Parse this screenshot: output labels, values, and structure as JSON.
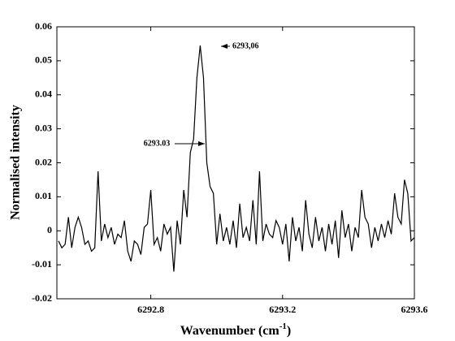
{
  "chart_data": {
    "type": "line",
    "color": "#000000",
    "xlabel": {
      "text": "Wavenumber (cm",
      "superscript": "-1",
      "suffix": ")"
    },
    "ylabel": "Normalised intensity",
    "xlim": [
      6292.515,
      6293.6
    ],
    "xticks": [
      6292.8,
      6293.2,
      6293.6
    ],
    "ylim": [
      -0.02,
      0.06
    ],
    "yticks": [
      -0.02,
      -0.01,
      0,
      0.01,
      0.02,
      0.03,
      0.04,
      0.05,
      0.06
    ],
    "annotations": [
      "6293.03",
      "6293,06"
    ],
    "x": [
      6292.52,
      6292.53,
      6292.54,
      6292.55,
      6292.56,
      6292.57,
      6292.58,
      6292.59,
      6292.6,
      6292.61,
      6292.62,
      6292.63,
      6292.64,
      6292.65,
      6292.66,
      6292.67,
      6292.68,
      6292.69,
      6292.7,
      6292.71,
      6292.72,
      6292.73,
      6292.74,
      6292.75,
      6292.76,
      6292.77,
      6292.78,
      6292.79,
      6292.8,
      6292.81,
      6292.82,
      6292.83,
      6292.84,
      6292.85,
      6292.86,
      6292.87,
      6292.88,
      6292.89,
      6292.9,
      6292.91,
      6292.92,
      6292.93,
      6292.94,
      6292.95,
      6292.96,
      6292.97,
      6292.98,
      6292.99,
      6293.0,
      6293.01,
      6293.02,
      6293.03,
      6293.04,
      6293.05,
      6293.06,
      6293.07,
      6293.08,
      6293.09,
      6293.1,
      6293.11,
      6293.12,
      6293.13,
      6293.14,
      6293.15,
      6293.16,
      6293.17,
      6293.18,
      6293.19,
      6293.2,
      6293.21,
      6293.22,
      6293.23,
      6293.24,
      6293.25,
      6293.26,
      6293.27,
      6293.28,
      6293.29,
      6293.3,
      6293.31,
      6293.32,
      6293.33,
      6293.34,
      6293.35,
      6293.36,
      6293.37,
      6293.38,
      6293.39,
      6293.4,
      6293.41,
      6293.42,
      6293.43,
      6293.44,
      6293.45,
      6293.46,
      6293.47,
      6293.48,
      6293.49,
      6293.5,
      6293.51,
      6293.52,
      6293.53,
      6293.54,
      6293.55,
      6293.56,
      6293.57,
      6293.58,
      6293.59,
      6293.6
    ],
    "values": [
      -0.003,
      -0.005,
      -0.004,
      0.004,
      -0.005,
      0.001,
      0.004,
      0.001,
      -0.004,
      -0.003,
      -0.006,
      -0.005,
      0.0175,
      -0.003,
      0.002,
      -0.002,
      0.001,
      -0.004,
      -0.001,
      -0.002,
      0.003,
      -0.006,
      -0.009,
      -0.003,
      -0.004,
      -0.007,
      0.001,
      0.002,
      0.012,
      -0.004,
      -0.002,
      -0.006,
      0.002,
      -0.001,
      0.001,
      -0.012,
      0.003,
      -0.004,
      0.012,
      0.004,
      0.023,
      0.027,
      0.045,
      0.0545,
      0.045,
      0.02,
      0.013,
      0.011,
      -0.004,
      0.005,
      -0.003,
      0.001,
      -0.004,
      0.003,
      -0.005,
      0.008,
      -0.002,
      0.001,
      -0.003,
      0.009,
      -0.004,
      0.0175,
      -0.003,
      0.002,
      -0.001,
      -0.002,
      0.003,
      0.001,
      -0.004,
      0.002,
      -0.009,
      0.004,
      -0.003,
      0.001,
      -0.006,
      0.009,
      -0.001,
      -0.005,
      0.004,
      -0.003,
      0.001,
      -0.006,
      0.002,
      -0.004,
      0.003,
      -0.008,
      0.006,
      -0.002,
      0.002,
      -0.006,
      0.001,
      -0.002,
      0.012,
      0.004,
      0.002,
      -0.005,
      0.001,
      -0.003,
      0.002,
      -0.002,
      0.003,
      -0.001,
      0.011,
      0.004,
      0.002,
      0.015,
      0.011,
      -0.003,
      -0.002
    ]
  }
}
